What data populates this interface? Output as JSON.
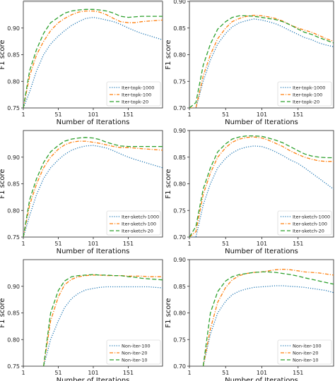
{
  "chart_data": [
    {
      "type": "line",
      "title": "",
      "xlabel": "Number of Iterations",
      "ylabel": "F1 score",
      "xlim": [
        1,
        200
      ],
      "ylim": [
        0.75,
        0.95
      ],
      "xticks": [
        1,
        51,
        101,
        151
      ],
      "yticks": [
        0.75,
        0.8,
        0.85,
        0.9
      ],
      "legend_position": "bottom-right",
      "x": [
        1,
        10,
        20,
        30,
        40,
        51,
        60,
        70,
        80,
        90,
        101,
        110,
        120,
        130,
        140,
        151,
        160,
        170,
        180,
        190,
        200
      ],
      "series": [
        {
          "name": "Iter-topk-1000",
          "color": "#1f77b4",
          "style": "dotted",
          "values": [
            0.75,
            0.78,
            0.82,
            0.85,
            0.87,
            0.885,
            0.895,
            0.905,
            0.912,
            0.918,
            0.92,
            0.918,
            0.915,
            0.912,
            0.907,
            0.9,
            0.895,
            0.89,
            0.886,
            0.882,
            0.878
          ]
        },
        {
          "name": "Iter-topk-100",
          "color": "#ff7f0e",
          "style": "dashdot",
          "values": [
            0.75,
            0.81,
            0.85,
            0.875,
            0.895,
            0.91,
            0.918,
            0.925,
            0.93,
            0.932,
            0.932,
            0.93,
            0.925,
            0.918,
            0.912,
            0.91,
            0.91,
            0.912,
            0.913,
            0.914,
            0.915
          ]
        },
        {
          "name": "Iter-topk-20",
          "color": "#2ca02c",
          "style": "dashed",
          "values": [
            0.75,
            0.82,
            0.86,
            0.89,
            0.91,
            0.92,
            0.928,
            0.932,
            0.934,
            0.935,
            0.935,
            0.934,
            0.932,
            0.928,
            0.922,
            0.92,
            0.921,
            0.922,
            0.922,
            0.922,
            0.922
          ]
        }
      ]
    },
    {
      "type": "line",
      "title": "",
      "xlabel": "Number of Iterations",
      "ylabel": "F1 score",
      "xlim": [
        1,
        200
      ],
      "ylim": [
        0.7,
        0.9
      ],
      "xticks": [
        1,
        51,
        101,
        151
      ],
      "yticks": [
        0.7,
        0.75,
        0.8,
        0.85,
        0.9
      ],
      "legend_position": "bottom-right",
      "x": [
        1,
        10,
        20,
        30,
        40,
        51,
        60,
        70,
        80,
        90,
        101,
        110,
        120,
        130,
        140,
        151,
        160,
        170,
        180,
        190,
        200
      ],
      "series": [
        {
          "name": "Iter-topk-1000",
          "color": "#1f77b4",
          "style": "dotted",
          "values": [
            0.7,
            0.7,
            0.75,
            0.79,
            0.82,
            0.84,
            0.852,
            0.86,
            0.864,
            0.867,
            0.865,
            0.862,
            0.858,
            0.852,
            0.845,
            0.838,
            0.832,
            0.828,
            0.822,
            0.818,
            0.815
          ]
        },
        {
          "name": "Iter-topk-100",
          "color": "#ff7f0e",
          "style": "dashdot",
          "values": [
            0.7,
            0.7,
            0.76,
            0.8,
            0.83,
            0.85,
            0.862,
            0.868,
            0.872,
            0.874,
            0.873,
            0.871,
            0.868,
            0.863,
            0.856,
            0.85,
            0.846,
            0.842,
            0.836,
            0.83,
            0.825
          ]
        },
        {
          "name": "Iter-topk-20",
          "color": "#2ca02c",
          "style": "dashed",
          "values": [
            0.7,
            0.71,
            0.78,
            0.82,
            0.848,
            0.862,
            0.87,
            0.873,
            0.873,
            0.872,
            0.87,
            0.868,
            0.866,
            0.862,
            0.856,
            0.848,
            0.842,
            0.838,
            0.832,
            0.827,
            0.822
          ]
        }
      ]
    },
    {
      "type": "line",
      "title": "",
      "xlabel": "Number of Iterations",
      "ylabel": "F1 score",
      "xlim": [
        1,
        200
      ],
      "ylim": [
        0.75,
        0.95
      ],
      "xticks": [
        1,
        51,
        101,
        151
      ],
      "yticks": [
        0.75,
        0.8,
        0.85,
        0.9
      ],
      "legend_position": "bottom-right",
      "x": [
        1,
        10,
        20,
        30,
        40,
        51,
        60,
        70,
        80,
        90,
        101,
        110,
        120,
        130,
        140,
        151,
        160,
        170,
        180,
        190,
        200
      ],
      "series": [
        {
          "name": "Iter-sketch-1000",
          "color": "#1f77b4",
          "style": "dotted",
          "values": [
            0.75,
            0.79,
            0.83,
            0.86,
            0.88,
            0.895,
            0.905,
            0.913,
            0.918,
            0.921,
            0.922,
            0.92,
            0.917,
            0.912,
            0.906,
            0.9,
            0.896,
            0.892,
            0.888,
            0.884,
            0.88
          ]
        },
        {
          "name": "Iter-sketch-100",
          "color": "#ff7f0e",
          "style": "dashdot",
          "values": [
            0.75,
            0.81,
            0.85,
            0.88,
            0.9,
            0.915,
            0.923,
            0.928,
            0.93,
            0.93,
            0.928,
            0.926,
            0.923,
            0.92,
            0.918,
            0.918,
            0.917,
            0.916,
            0.915,
            0.914,
            0.913
          ]
        },
        {
          "name": "Iter-sketch-20",
          "color": "#2ca02c",
          "style": "dashed",
          "values": [
            0.75,
            0.82,
            0.86,
            0.89,
            0.91,
            0.922,
            0.93,
            0.934,
            0.936,
            0.937,
            0.936,
            0.933,
            0.928,
            0.924,
            0.921,
            0.92,
            0.92,
            0.92,
            0.92,
            0.92,
            0.92
          ]
        }
      ]
    },
    {
      "type": "line",
      "title": "",
      "xlabel": "Number of Iterations",
      "ylabel": "F1 score",
      "xlim": [
        1,
        200
      ],
      "ylim": [
        0.7,
        0.9
      ],
      "xticks": [
        1,
        51,
        101,
        151
      ],
      "yticks": [
        0.7,
        0.75,
        0.8,
        0.85,
        0.9
      ],
      "legend_position": "bottom-right",
      "x": [
        1,
        10,
        20,
        30,
        40,
        51,
        60,
        70,
        80,
        90,
        101,
        110,
        120,
        130,
        140,
        151,
        160,
        170,
        180,
        190,
        200
      ],
      "series": [
        {
          "name": "Iter-sketch-1000",
          "color": "#1f77b4",
          "style": "dotted",
          "values": [
            0.7,
            0.7,
            0.76,
            0.8,
            0.83,
            0.848,
            0.858,
            0.865,
            0.869,
            0.871,
            0.87,
            0.866,
            0.86,
            0.853,
            0.845,
            0.838,
            0.83,
            0.82,
            0.81,
            0.8,
            0.79
          ]
        },
        {
          "name": "Iter-sketch-100",
          "color": "#ff7f0e",
          "style": "dashdot",
          "values": [
            0.7,
            0.71,
            0.78,
            0.82,
            0.85,
            0.868,
            0.878,
            0.884,
            0.887,
            0.888,
            0.886,
            0.882,
            0.876,
            0.87,
            0.862,
            0.855,
            0.85,
            0.846,
            0.843,
            0.842,
            0.842
          ]
        },
        {
          "name": "Iter-sketch-20",
          "color": "#2ca02c",
          "style": "dashed",
          "values": [
            0.7,
            0.72,
            0.79,
            0.83,
            0.86,
            0.875,
            0.884,
            0.888,
            0.89,
            0.89,
            0.889,
            0.886,
            0.882,
            0.877,
            0.87,
            0.862,
            0.856,
            0.852,
            0.85,
            0.849,
            0.849
          ]
        }
      ]
    },
    {
      "type": "line",
      "title": "",
      "xlabel": "Number of Iterations",
      "ylabel": "F1 score",
      "xlim": [
        1,
        200
      ],
      "ylim": [
        0.75,
        0.95
      ],
      "xticks": [
        1,
        51,
        101,
        151
      ],
      "yticks": [
        0.75,
        0.8,
        0.85,
        0.9
      ],
      "legend_position": "bottom-right",
      "x": [
        1,
        10,
        20,
        30,
        40,
        51,
        60,
        70,
        80,
        90,
        101,
        110,
        120,
        130,
        140,
        151,
        160,
        170,
        180,
        190,
        200
      ],
      "series": [
        {
          "name": "Non-iter-100",
          "color": "#1f77b4",
          "style": "dotted",
          "values": [
            null,
            null,
            null,
            0.75,
            0.8,
            0.835,
            0.86,
            0.877,
            0.887,
            0.893,
            0.896,
            0.898,
            0.899,
            0.899,
            0.899,
            0.899,
            0.899,
            0.899,
            0.899,
            0.898,
            0.897
          ]
        },
        {
          "name": "Non-iter-20",
          "color": "#ff7f0e",
          "style": "dashdot",
          "values": [
            null,
            null,
            null,
            0.75,
            0.835,
            0.88,
            0.903,
            0.913,
            0.918,
            0.92,
            0.921,
            0.921,
            0.92,
            0.92,
            0.92,
            0.919,
            0.919,
            0.919,
            0.918,
            0.918,
            0.918
          ]
        },
        {
          "name": "Non-iter-10",
          "color": "#2ca02c",
          "style": "dashed",
          "values": [
            null,
            null,
            null,
            0.75,
            0.85,
            0.892,
            0.91,
            0.918,
            0.92,
            0.921,
            0.922,
            0.921,
            0.921,
            0.92,
            0.92,
            0.918,
            0.917,
            0.915,
            0.914,
            0.913,
            0.912
          ]
        }
      ]
    },
    {
      "type": "line",
      "title": "",
      "xlabel": "Number of Iterations",
      "ylabel": "F1 score",
      "xlim": [
        1,
        200
      ],
      "ylim": [
        0.7,
        0.9
      ],
      "xticks": [
        1,
        51,
        101,
        151
      ],
      "yticks": [
        0.7,
        0.75,
        0.8,
        0.85,
        0.9
      ],
      "legend_position": "bottom-right",
      "x": [
        1,
        10,
        20,
        30,
        40,
        51,
        60,
        70,
        80,
        90,
        101,
        110,
        120,
        130,
        140,
        151,
        160,
        170,
        180,
        190,
        200
      ],
      "series": [
        {
          "name": "Non-iter-100",
          "color": "#1f77b4",
          "style": "dotted",
          "values": [
            null,
            null,
            0.7,
            0.76,
            0.8,
            0.822,
            0.834,
            0.841,
            0.845,
            0.848,
            0.849,
            0.85,
            0.851,
            0.851,
            0.85,
            0.849,
            0.848,
            0.846,
            0.844,
            0.842,
            0.838
          ]
        },
        {
          "name": "Non-iter-20",
          "color": "#ff7f0e",
          "style": "dashdot",
          "values": [
            null,
            null,
            0.7,
            0.77,
            0.82,
            0.848,
            0.862,
            0.87,
            0.874,
            0.876,
            0.877,
            0.879,
            0.881,
            0.882,
            0.881,
            0.879,
            0.877,
            0.876,
            0.875,
            0.873,
            0.871
          ]
        },
        {
          "name": "Non-iter-10",
          "color": "#2ca02c",
          "style": "dashed",
          "values": [
            null,
            null,
            0.7,
            0.8,
            0.84,
            0.86,
            0.868,
            0.872,
            0.874,
            0.876,
            0.877,
            0.877,
            0.876,
            0.874,
            0.872,
            0.869,
            0.866,
            0.863,
            0.86,
            0.857,
            0.854
          ]
        }
      ]
    }
  ]
}
